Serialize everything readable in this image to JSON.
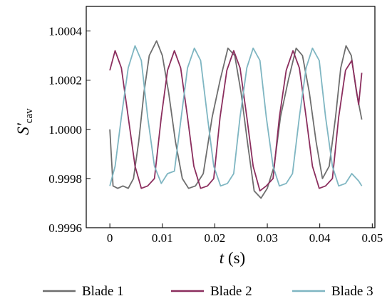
{
  "chart_data": {
    "type": "line",
    "title": "",
    "xlabel": {
      "var": "t",
      "unit": " (s)"
    },
    "ylabel": {
      "var": "S'",
      "sub": "cav"
    },
    "xlim": [
      -0.0045,
      0.0505
    ],
    "ylim": [
      0.9996,
      1.0005
    ],
    "x_ticks": [
      0,
      0.01,
      0.02,
      0.03,
      0.04,
      0.05
    ],
    "x_tick_labels": [
      "0",
      "0.01",
      "0.02",
      "0.03",
      "0.04",
      "0.05"
    ],
    "y_ticks": [
      0.9996,
      0.9998,
      1.0,
      1.0002,
      1.0004
    ],
    "y_tick_labels": [
      "0.9996",
      "0.9998",
      "1.0000",
      "1.0002",
      "1.0004"
    ],
    "grid": false,
    "legend_position": "bottom",
    "series": [
      {
        "name": "Blade 1",
        "color": "#6e6e6e",
        "points": [
          [
            0.0,
            1.0
          ],
          [
            0.0006,
            0.99977
          ],
          [
            0.0015,
            0.99976
          ],
          [
            0.0025,
            0.99977
          ],
          [
            0.0035,
            0.99976
          ],
          [
            0.0045,
            0.9998
          ],
          [
            0.0055,
            0.99995
          ],
          [
            0.0065,
            1.00015
          ],
          [
            0.0075,
            1.0003
          ],
          [
            0.0089,
            1.00036
          ],
          [
            0.01,
            1.0003
          ],
          [
            0.0112,
            1.00015
          ],
          [
            0.0125,
            0.99995
          ],
          [
            0.0138,
            0.9998
          ],
          [
            0.015,
            0.99976
          ],
          [
            0.0163,
            0.99977
          ],
          [
            0.0178,
            0.99982
          ],
          [
            0.0195,
            1.00005
          ],
          [
            0.021,
            1.0002
          ],
          [
            0.0225,
            1.00033
          ],
          [
            0.0238,
            1.0003
          ],
          [
            0.025,
            1.00015
          ],
          [
            0.0262,
            0.99995
          ],
          [
            0.0275,
            0.99975
          ],
          [
            0.0288,
            0.99972
          ],
          [
            0.03,
            0.99976
          ],
          [
            0.0313,
            0.99985
          ],
          [
            0.0325,
            1.00005
          ],
          [
            0.034,
            1.0002
          ],
          [
            0.0355,
            1.00033
          ],
          [
            0.0367,
            1.0003
          ],
          [
            0.038,
            1.00015
          ],
          [
            0.0393,
            0.99995
          ],
          [
            0.0405,
            0.9998
          ],
          [
            0.0418,
            0.99985
          ],
          [
            0.043,
            1.00005
          ],
          [
            0.044,
            1.00025
          ],
          [
            0.045,
            1.00034
          ],
          [
            0.046,
            1.0003
          ],
          [
            0.047,
            1.00015
          ],
          [
            0.048,
            1.00004
          ]
        ]
      },
      {
        "name": "Blade 2",
        "color": "#8b2e5e",
        "points": [
          [
            0.0,
            1.00024
          ],
          [
            0.001,
            1.00032
          ],
          [
            0.0022,
            1.00025
          ],
          [
            0.0035,
            1.00005
          ],
          [
            0.0048,
            0.99985
          ],
          [
            0.006,
            0.99976
          ],
          [
            0.0072,
            0.99977
          ],
          [
            0.0085,
            0.9998
          ],
          [
            0.0098,
            1.00005
          ],
          [
            0.011,
            1.00024
          ],
          [
            0.0123,
            1.00032
          ],
          [
            0.0135,
            1.00025
          ],
          [
            0.0148,
            1.00005
          ],
          [
            0.016,
            0.99985
          ],
          [
            0.0173,
            0.99976
          ],
          [
            0.0186,
            0.99977
          ],
          [
            0.0198,
            0.9998
          ],
          [
            0.021,
            1.00005
          ],
          [
            0.0223,
            1.00024
          ],
          [
            0.0236,
            1.00032
          ],
          [
            0.0248,
            1.00025
          ],
          [
            0.0261,
            1.00005
          ],
          [
            0.0273,
            0.99985
          ],
          [
            0.0286,
            0.99975
          ],
          [
            0.0298,
            0.99977
          ],
          [
            0.0311,
            0.9998
          ],
          [
            0.0323,
            1.00005
          ],
          [
            0.0336,
            1.00024
          ],
          [
            0.0349,
            1.00032
          ],
          [
            0.0361,
            1.00025
          ],
          [
            0.0374,
            1.00005
          ],
          [
            0.0386,
            0.99985
          ],
          [
            0.0399,
            0.99976
          ],
          [
            0.0411,
            0.99977
          ],
          [
            0.0424,
            0.9998
          ],
          [
            0.0436,
            1.00005
          ],
          [
            0.0449,
            1.00024
          ],
          [
            0.0461,
            1.00028
          ],
          [
            0.0474,
            1.0001
          ],
          [
            0.048,
            1.00023
          ]
        ]
      },
      {
        "name": "Blade 3",
        "color": "#7fb6c2",
        "points": [
          [
            0.0,
            0.99977
          ],
          [
            0.001,
            0.99985
          ],
          [
            0.0022,
            1.00005
          ],
          [
            0.0035,
            1.00025
          ],
          [
            0.0048,
            1.00034
          ],
          [
            0.006,
            1.00028
          ],
          [
            0.0072,
            1.00005
          ],
          [
            0.0085,
            0.99985
          ],
          [
            0.0098,
            0.99978
          ],
          [
            0.011,
            0.99982
          ],
          [
            0.0123,
            0.99983
          ],
          [
            0.0136,
            1.00005
          ],
          [
            0.0148,
            1.00025
          ],
          [
            0.0161,
            1.00033
          ],
          [
            0.0173,
            1.00028
          ],
          [
            0.0186,
            1.00005
          ],
          [
            0.0198,
            0.99985
          ],
          [
            0.0211,
            0.99977
          ],
          [
            0.0224,
            0.99978
          ],
          [
            0.0236,
            0.99982
          ],
          [
            0.0248,
            1.00005
          ],
          [
            0.0261,
            1.00025
          ],
          [
            0.0273,
            1.00033
          ],
          [
            0.0286,
            1.00028
          ],
          [
            0.0298,
            1.00005
          ],
          [
            0.0311,
            0.99985
          ],
          [
            0.0323,
            0.99977
          ],
          [
            0.0336,
            0.99978
          ],
          [
            0.0348,
            0.99982
          ],
          [
            0.0361,
            1.00005
          ],
          [
            0.0374,
            1.00025
          ],
          [
            0.0386,
            1.00033
          ],
          [
            0.0399,
            1.00028
          ],
          [
            0.0411,
            1.00005
          ],
          [
            0.0424,
            0.99985
          ],
          [
            0.0436,
            0.99977
          ],
          [
            0.0449,
            0.99978
          ],
          [
            0.0461,
            0.99982
          ],
          [
            0.0474,
            0.99979
          ],
          [
            0.048,
            0.99977
          ]
        ]
      }
    ]
  }
}
